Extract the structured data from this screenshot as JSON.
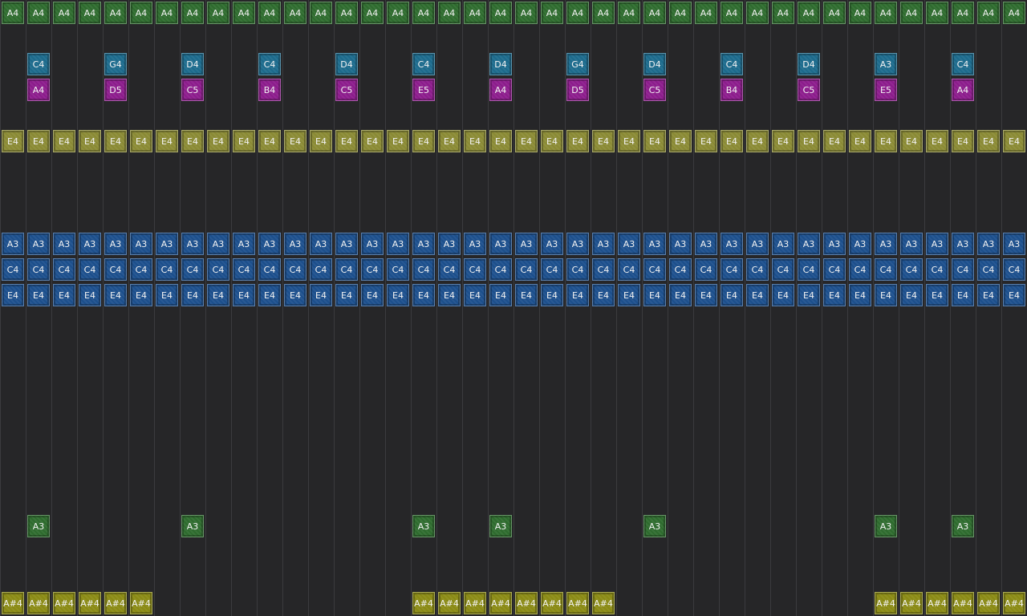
{
  "rows": [
    {
      "color": "#2e6b2e",
      "cells": [
        "A4",
        "A4",
        "A4",
        "A4",
        "A4",
        "A4",
        "A4",
        "A4",
        "A4",
        "A4",
        "A4",
        "A4",
        "A4",
        "A4",
        "A4",
        "A4",
        "A4",
        "A4",
        "A4",
        "A4",
        "A4",
        "A4",
        "A4",
        "A4",
        "A4",
        "A4",
        "A4",
        "A4",
        "A4",
        "A4",
        "A4",
        "A4",
        "A4",
        "A4",
        "A4",
        "A4",
        "A4",
        "A4",
        "A4",
        "A4"
      ]
    },
    null,
    {
      "color": "#1c6a8c",
      "cells": [
        null,
        "C4",
        null,
        null,
        "G4",
        null,
        null,
        "D4",
        null,
        null,
        "C4",
        null,
        null,
        "D4",
        null,
        null,
        "C4",
        null,
        null,
        "D4",
        null,
        null,
        "G4",
        null,
        null,
        "D4",
        null,
        null,
        "C4",
        null,
        null,
        "D4",
        null,
        null,
        "A3",
        null,
        null,
        "C4",
        null,
        null
      ]
    },
    {
      "color": "#8c1c8c",
      "cells": [
        null,
        "A4",
        null,
        null,
        "D5",
        null,
        null,
        "C5",
        null,
        null,
        "B4",
        null,
        null,
        "C5",
        null,
        null,
        "E5",
        null,
        null,
        "A4",
        null,
        null,
        "D5",
        null,
        null,
        "C5",
        null,
        null,
        "B4",
        null,
        null,
        "C5",
        null,
        null,
        "E5",
        null,
        null,
        "A4",
        null,
        null
      ]
    },
    null,
    {
      "color": "#8a8a34",
      "cells": [
        "E4",
        "E4",
        "E4",
        "E4",
        "E4",
        "E4",
        "E4",
        "E4",
        "E4",
        "E4",
        "E4",
        "E4",
        "E4",
        "E4",
        "E4",
        "E4",
        "E4",
        "E4",
        "E4",
        "E4",
        "E4",
        "E4",
        "E4",
        "E4",
        "E4",
        "E4",
        "E4",
        "E4",
        "E4",
        "E4",
        "E4",
        "E4",
        "E4",
        "E4",
        "E4",
        "E4",
        "E4",
        "E4",
        "E4",
        "E4"
      ]
    },
    null,
    null,
    null,
    {
      "color": "#1c4f8c",
      "cells": [
        "A3",
        "A3",
        "A3",
        "A3",
        "A3",
        "A3",
        "A3",
        "A3",
        "A3",
        "A3",
        "A3",
        "A3",
        "A3",
        "A3",
        "A3",
        "A3",
        "A3",
        "A3",
        "A3",
        "A3",
        "A3",
        "A3",
        "A3",
        "A3",
        "A3",
        "A3",
        "A3",
        "A3",
        "A3",
        "A3",
        "A3",
        "A3",
        "A3",
        "A3",
        "A3",
        "A3",
        "A3",
        "A3",
        "A3",
        "A3"
      ]
    },
    {
      "color": "#1c4f8c",
      "cells": [
        "C4",
        "C4",
        "C4",
        "C4",
        "C4",
        "C4",
        "C4",
        "C4",
        "C4",
        "C4",
        "C4",
        "C4",
        "C4",
        "C4",
        "C4",
        "C4",
        "C4",
        "C4",
        "C4",
        "C4",
        "C4",
        "C4",
        "C4",
        "C4",
        "C4",
        "C4",
        "C4",
        "C4",
        "C4",
        "C4",
        "C4",
        "C4",
        "C4",
        "C4",
        "C4",
        "C4",
        "C4",
        "C4",
        "C4",
        "C4"
      ]
    },
    {
      "color": "#1c4f8c",
      "cells": [
        "E4",
        "E4",
        "E4",
        "E4",
        "E4",
        "E4",
        "E4",
        "E4",
        "E4",
        "E4",
        "E4",
        "E4",
        "E4",
        "E4",
        "E4",
        "E4",
        "E4",
        "E4",
        "E4",
        "E4",
        "E4",
        "E4",
        "E4",
        "E4",
        "E4",
        "E4",
        "E4",
        "E4",
        "E4",
        "E4",
        "E4",
        "E4",
        "E4",
        "E4",
        "E4",
        "E4",
        "E4",
        "E4",
        "E4",
        "E4"
      ]
    },
    null,
    null,
    null,
    null,
    null,
    null,
    null,
    null,
    {
      "color": "#2e6b2e",
      "cells": [
        null,
        "A3",
        null,
        null,
        null,
        null,
        null,
        "A3",
        null,
        null,
        null,
        null,
        null,
        null,
        null,
        null,
        "A3",
        null,
        null,
        "A3",
        null,
        null,
        null,
        null,
        null,
        "A3",
        null,
        null,
        null,
        null,
        null,
        null,
        null,
        null,
        "A3",
        null,
        null,
        "A3",
        null,
        null
      ]
    },
    null,
    null,
    {
      "color": "#8a8a14",
      "cells": [
        "A#4",
        "A#4",
        "A#4",
        "A#4",
        "A#4",
        "A#4",
        null,
        null,
        null,
        null,
        null,
        null,
        null,
        null,
        null,
        null,
        "A#4",
        "A#4",
        "A#4",
        "A#4",
        "A#4",
        "A#4",
        "A#4",
        "A#4",
        null,
        null,
        null,
        null,
        null,
        null,
        null,
        null,
        null,
        null,
        "A#4",
        "A#4",
        "A#4",
        "A#4",
        "A#4",
        "A#4"
      ]
    }
  ]
}
